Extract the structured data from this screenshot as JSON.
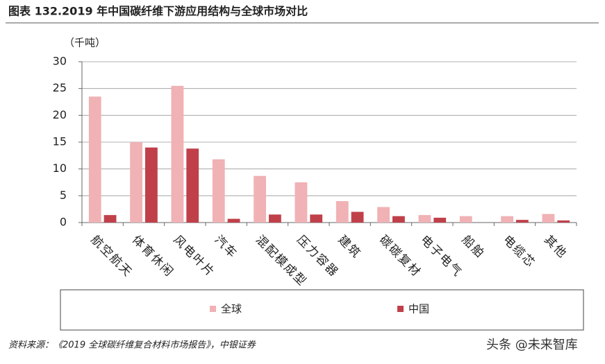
{
  "chart_data": {
    "type": "bar",
    "title": "图表 132.2019 年中国碳纤维下游应用结构与全球市场对比",
    "y_label": "（千吨）",
    "categories": [
      "航空航天",
      "体育休闲",
      "风电叶片",
      "汽车",
      "混配模成型",
      "压力容器",
      "建筑",
      "碳碳复材",
      "电子电气",
      "船舶",
      "电缆芯",
      "其他"
    ],
    "series": [
      {
        "name": "全球",
        "color": "#f0b2b5",
        "values": [
          23.5,
          15,
          25.5,
          11.8,
          8.7,
          7.5,
          4,
          2.9,
          1.4,
          1.2,
          1.2,
          1.6
        ]
      },
      {
        "name": "中国",
        "color": "#c0404a",
        "values": [
          1.4,
          14,
          13.8,
          0.7,
          1.5,
          1.5,
          2,
          1.2,
          0.9,
          0,
          0.5,
          0.4
        ]
      }
    ],
    "ylim": [
      0,
      30
    ],
    "yticks": [
      0,
      5,
      10,
      15,
      20,
      25,
      30
    ],
    "grid": true,
    "source": "资料来源：《2019 全球碳纤维复合材料市场报告》，中银证券",
    "watermark": "头条 @未来智库"
  }
}
